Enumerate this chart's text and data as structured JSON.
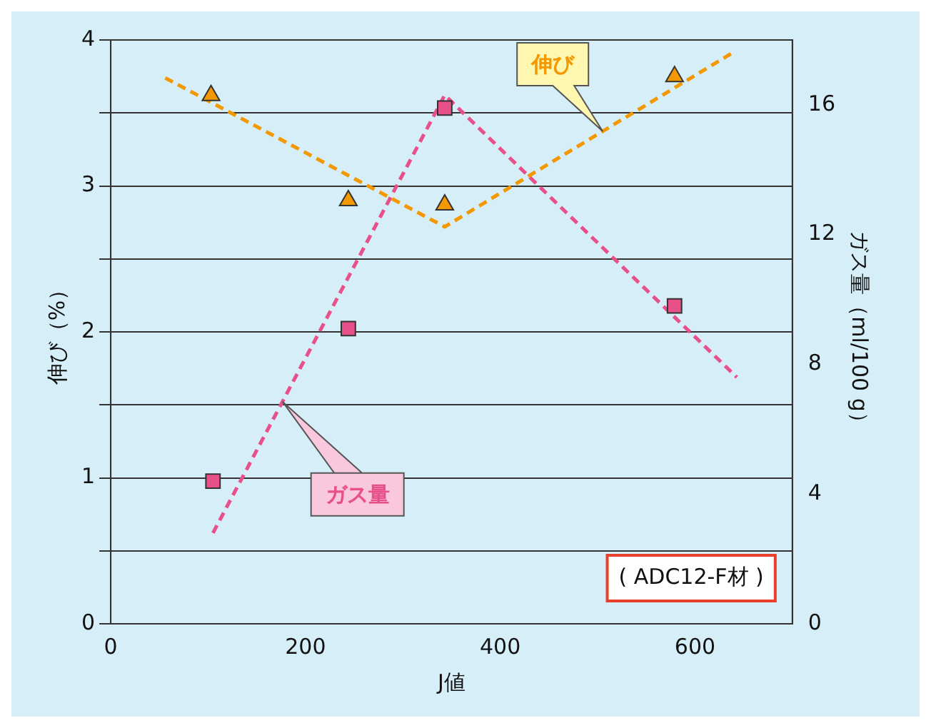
{
  "chart_data": {
    "type": "scatter",
    "xlabel": "J値",
    "ylabel": "伸び（%）",
    "y2label": "ガス量（ml/100 g）",
    "xlim": [
      0,
      700
    ],
    "xticks": [
      0,
      200,
      400,
      600
    ],
    "ylim": [
      0,
      4
    ],
    "yticks": [
      0,
      {
        "value": 0.5,
        "label": null
      },
      1,
      {
        "value": 1.5,
        "label": null
      },
      2,
      {
        "value": 2.5,
        "label": null
      },
      3,
      {
        "value": 3.5,
        "label": null
      },
      4
    ],
    "y2lim": [
      0,
      18
    ],
    "y2ticks": [
      0,
      4,
      8,
      12,
      16
    ],
    "grid": "y",
    "legend": false,
    "annotations": [
      "( ADC12-F材 )"
    ],
    "series": [
      {
        "type": "scatter",
        "color": "#f39800",
        "marker": "triangle",
        "x": [
          103,
          244,
          343,
          579
        ],
        "values": [
          3.62,
          2.9,
          2.87,
          3.75
        ]
      },
      {
        "type": "scatter",
        "color": "#e8508a",
        "marker": "square",
        "axis": "y2",
        "x": [
          105,
          244,
          343,
          579
        ],
        "values": [
          4.4,
          9.1,
          15.9,
          9.8
        ]
      },
      {
        "type": "line",
        "name": "伸び",
        "color": "#f39800",
        "marker": "none",
        "line_style": "dashed",
        "x": [
          56,
          343,
          638
        ],
        "values": [
          3.74,
          2.72,
          3.91
        ]
      },
      {
        "type": "line",
        "name": "ガス量",
        "color": "#e8508a",
        "marker": "none",
        "line_style": "dashed",
        "axis": "y2",
        "x": [
          105,
          343,
          643
        ],
        "values": [
          2.8,
          16.3,
          7.6
        ]
      }
    ]
  }
}
